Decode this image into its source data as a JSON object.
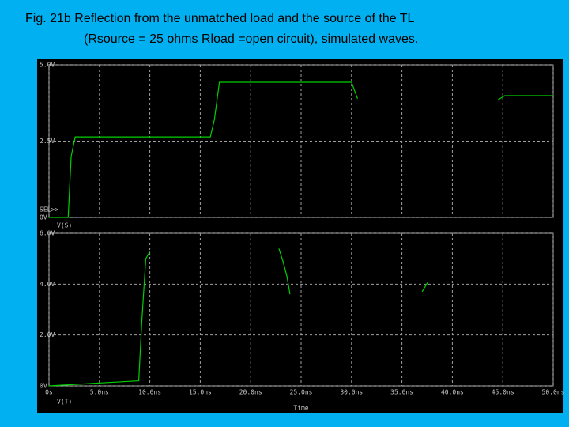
{
  "slide": {
    "caption": [
      "Fig. 21b  Reflection from the unmatched load and the source of the TL",
      "(Rsource = 25 ohms Rload =open circuit), simulated waves."
    ]
  },
  "chart_data": [
    {
      "type": "line",
      "annotation": "SEL>>",
      "tick_labels_x": false,
      "grid": true,
      "x": [
        0,
        1.9,
        2.2,
        2.6,
        16.0,
        16.4,
        16.9,
        30.0,
        30.6,
        37.0,
        44.5,
        45.2,
        50
      ],
      "series": [
        {
          "name": "V(S)",
          "color": "#00d000",
          "values": [
            0,
            0,
            2.0,
            2.64,
            2.64,
            3.2,
            4.43,
            4.43,
            3.89,
            null,
            3.85,
            3.99,
            3.99
          ]
        }
      ],
      "xlim": [
        0,
        50
      ],
      "xticks": [
        0,
        5,
        10,
        15,
        20,
        25,
        30,
        35,
        40,
        45,
        50
      ],
      "ylim": [
        0,
        5
      ],
      "yticks": [
        {
          "value": 0,
          "label": "0V"
        },
        {
          "value": 2.5,
          "label": "2.5V"
        },
        {
          "value": 5,
          "label": "5.0V"
        }
      ]
    },
    {
      "type": "line",
      "x_label": "Time",
      "tick_labels_x": true,
      "grid": true,
      "x": [
        0,
        8.9,
        9.2,
        9.6,
        10.0,
        16,
        22.8,
        23.2,
        23.6,
        23.9,
        30,
        37.0,
        37.6
      ],
      "series": [
        {
          "name": "V(T)",
          "color": "#00d000",
          "values": [
            0,
            0.2,
            2.5,
            5.0,
            5.28,
            null,
            5.4,
            4.9,
            4.3,
            3.6,
            null,
            3.7,
            4.1
          ]
        }
      ],
      "xlim": [
        0,
        50
      ],
      "xticks": [
        {
          "value": 0,
          "label": "0s"
        },
        {
          "value": 5,
          "label": "5.0ns"
        },
        {
          "value": 10,
          "label": "10.0ns"
        },
        {
          "value": 15,
          "label": "15.0ns"
        },
        {
          "value": 20,
          "label": "20.0ns"
        },
        {
          "value": 25,
          "label": "25.0ns"
        },
        {
          "value": 30,
          "label": "30.0ns"
        },
        {
          "value": 35,
          "label": "35.0ns"
        },
        {
          "value": 40,
          "label": "40.0ns"
        },
        {
          "value": 45,
          "label": "45.0ns"
        },
        {
          "value": 50,
          "label": "50.0ns"
        }
      ],
      "ylim": [
        0,
        6
      ],
      "yticks": [
        {
          "value": 0,
          "label": "0V"
        },
        {
          "value": 2,
          "label": "2.0V"
        },
        {
          "value": 4,
          "label": "4.0V"
        },
        {
          "value": 6,
          "label": "6.0V"
        }
      ]
    }
  ]
}
